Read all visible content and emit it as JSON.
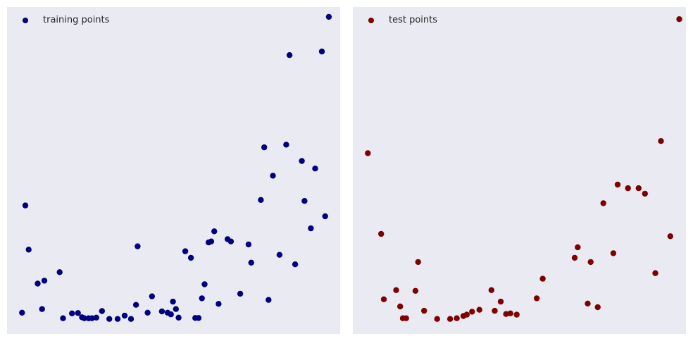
{
  "chart_data": [
    {
      "type": "scatter",
      "title": "",
      "xlabel": "",
      "ylabel": "",
      "xlim": [
        0,
        100
      ],
      "ylim": [
        0,
        100
      ],
      "grid": false,
      "legend_position": "top-left",
      "series": [
        {
          "name": "training points",
          "color": "#00007f",
          "points": [
            [
              4.5,
              6.5
            ],
            [
              5.5,
              39.3
            ],
            [
              6.5,
              25.8
            ],
            [
              9.2,
              15.4
            ],
            [
              10.5,
              7.6
            ],
            [
              11.2,
              16.3
            ],
            [
              15.8,
              18.9
            ],
            [
              16.8,
              4.8
            ],
            [
              19.5,
              6.3
            ],
            [
              21.3,
              6.4
            ],
            [
              22.5,
              5.1
            ],
            [
              23.2,
              4.8
            ],
            [
              24.5,
              4.8
            ],
            [
              25.5,
              4.8
            ],
            [
              26.8,
              5.0
            ],
            [
              28.5,
              7.0
            ],
            [
              30.7,
              4.6
            ],
            [
              33.2,
              4.6
            ],
            [
              35.3,
              5.6
            ],
            [
              37.2,
              4.6
            ],
            [
              38.7,
              8.9
            ],
            [
              39.2,
              26.8
            ],
            [
              42.2,
              6.5
            ],
            [
              43.5,
              11.5
            ],
            [
              46.5,
              6.9
            ],
            [
              48.2,
              6.5
            ],
            [
              49.2,
              6.0
            ],
            [
              49.8,
              9.9
            ],
            [
              50.7,
              7.6
            ],
            [
              51.5,
              5.0
            ],
            [
              53.5,
              25.3
            ],
            [
              55.2,
              23.3
            ],
            [
              56.5,
              4.9
            ],
            [
              57.5,
              4.9
            ],
            [
              58.5,
              10.9
            ],
            [
              59.3,
              15.2
            ],
            [
              60.5,
              28.0
            ],
            [
              61.3,
              28.3
            ],
            [
              62.2,
              31.4
            ],
            [
              63.5,
              9.2
            ],
            [
              66.2,
              29.0
            ],
            [
              67.2,
              28.3
            ],
            [
              70.0,
              12.3
            ],
            [
              72.5,
              27.4
            ],
            [
              73.3,
              21.8
            ],
            [
              76.2,
              41.0
            ],
            [
              77.2,
              57.1
            ],
            [
              78.5,
              10.4
            ],
            [
              79.8,
              48.4
            ],
            [
              81.8,
              24.2
            ],
            [
              83.8,
              57.9
            ],
            [
              84.8,
              85.3
            ],
            [
              86.5,
              21.3
            ],
            [
              88.5,
              52.9
            ],
            [
              89.3,
              40.7
            ],
            [
              91.2,
              32.3
            ],
            [
              92.5,
              50.6
            ],
            [
              94.5,
              86.4
            ],
            [
              95.5,
              36.0
            ],
            [
              96.6,
              97.0
            ]
          ]
        },
        {
          "name": "test points",
          "color": "#7f0000",
          "points": [
            [
              4.5,
              55.3
            ],
            [
              8.5,
              30.6
            ],
            [
              9.3,
              10.6
            ],
            [
              13.0,
              13.4
            ],
            [
              14.2,
              8.4
            ],
            [
              15.0,
              4.8
            ],
            [
              16.0,
              4.8
            ],
            [
              18.8,
              13.2
            ],
            [
              19.6,
              22.0
            ],
            [
              21.4,
              7.1
            ],
            [
              25.3,
              4.6
            ],
            [
              29.2,
              4.6
            ],
            [
              31.2,
              4.8
            ],
            [
              33.2,
              5.5
            ],
            [
              34.2,
              5.9
            ],
            [
              35.8,
              6.8
            ],
            [
              38.0,
              7.4
            ],
            [
              41.6,
              13.4
            ],
            [
              42.6,
              7.1
            ],
            [
              44.4,
              9.9
            ],
            [
              46.0,
              6.1
            ],
            [
              47.3,
              6.3
            ],
            [
              49.2,
              5.9
            ],
            [
              55.2,
              10.9
            ],
            [
              57.0,
              16.9
            ],
            [
              66.6,
              23.3
            ],
            [
              67.5,
              26.5
            ],
            [
              70.5,
              9.3
            ],
            [
              71.4,
              22.0
            ],
            [
              73.5,
              8.2
            ],
            [
              75.2,
              40.0
            ],
            [
              78.2,
              24.7
            ],
            [
              79.5,
              45.7
            ],
            [
              82.6,
              44.6
            ],
            [
              85.8,
              44.6
            ],
            [
              87.7,
              42.9
            ],
            [
              90.8,
              18.6
            ],
            [
              92.5,
              59.0
            ],
            [
              95.3,
              29.9
            ],
            [
              98.0,
              96.3
            ]
          ]
        }
      ]
    }
  ]
}
